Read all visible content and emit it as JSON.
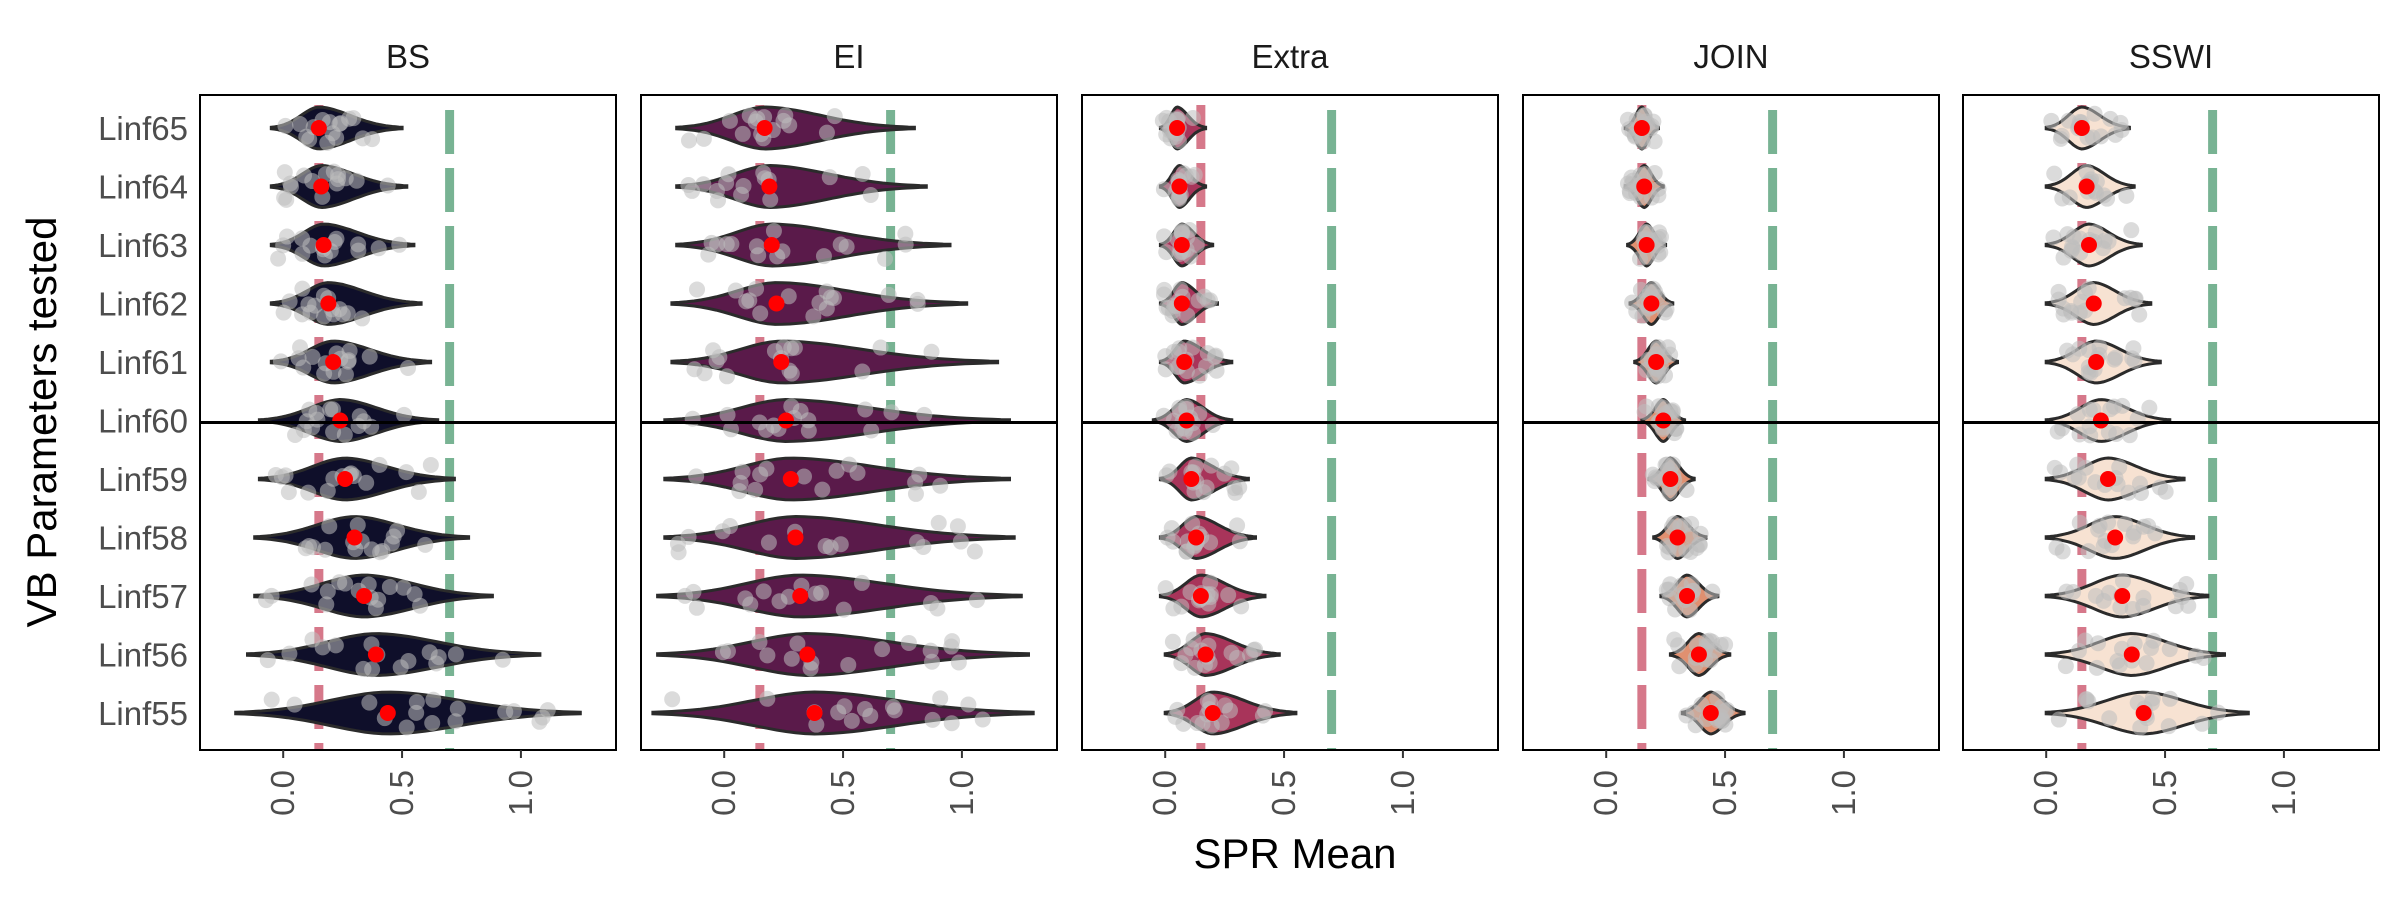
{
  "chart_data": {
    "type": "violin",
    "xlabel": "SPR Mean",
    "ylabel": "VB Parameters tested",
    "categories": [
      "Linf65",
      "Linf64",
      "Linf63",
      "Linf62",
      "Linf61",
      "Linf60",
      "Linf59",
      "Linf58",
      "Linf57",
      "Linf56",
      "Linf55"
    ],
    "separator_after": "Linf60",
    "xlim": [
      -0.35,
      1.4
    ],
    "xticks": [
      0.0,
      0.5,
      1.0
    ],
    "xtick_labels": [
      "0.0",
      "0.5",
      "1.0"
    ],
    "reference_lines": {
      "red": {
        "x": 0.15,
        "color": "#d26a7e"
      },
      "green": {
        "x": 0.7,
        "color": "#6aab88"
      }
    },
    "mean_color": "#ff0000",
    "points_color": "#bdbdbd",
    "panels": [
      {
        "name": "BS",
        "fill": "#0f0f2a",
        "means": [
          0.15,
          0.16,
          0.17,
          0.19,
          0.21,
          0.24,
          0.26,
          0.3,
          0.34,
          0.39,
          0.44
        ],
        "ranges": [
          [
            -0.05,
            0.5
          ],
          [
            -0.05,
            0.52
          ],
          [
            -0.05,
            0.55
          ],
          [
            -0.05,
            0.58
          ],
          [
            -0.05,
            0.62
          ],
          [
            -0.1,
            0.65
          ],
          [
            -0.1,
            0.72
          ],
          [
            -0.12,
            0.78
          ],
          [
            -0.12,
            0.88
          ],
          [
            -0.15,
            1.08
          ],
          [
            -0.2,
            1.25
          ]
        ]
      },
      {
        "name": "EI",
        "fill": "#5a1a4a",
        "means": [
          0.17,
          0.19,
          0.2,
          0.22,
          0.24,
          0.26,
          0.28,
          0.3,
          0.32,
          0.35,
          0.38
        ],
        "ranges": [
          [
            -0.2,
            0.8
          ],
          [
            -0.2,
            0.85
          ],
          [
            -0.2,
            0.95
          ],
          [
            -0.22,
            1.02
          ],
          [
            -0.22,
            1.15
          ],
          [
            -0.25,
            1.2
          ],
          [
            -0.25,
            1.2
          ],
          [
            -0.25,
            1.22
          ],
          [
            -0.28,
            1.25
          ],
          [
            -0.28,
            1.28
          ],
          [
            -0.3,
            1.3
          ]
        ]
      },
      {
        "name": "Extra",
        "fill": "#a8345a",
        "means": [
          0.05,
          0.06,
          0.07,
          0.07,
          0.08,
          0.09,
          0.11,
          0.13,
          0.15,
          0.17,
          0.2
        ],
        "ranges": [
          [
            -0.02,
            0.17
          ],
          [
            -0.02,
            0.17
          ],
          [
            -0.02,
            0.2
          ],
          [
            -0.02,
            0.22
          ],
          [
            -0.02,
            0.28
          ],
          [
            -0.05,
            0.28
          ],
          [
            -0.02,
            0.35
          ],
          [
            -0.02,
            0.38
          ],
          [
            -0.02,
            0.42
          ],
          [
            0.0,
            0.48
          ],
          [
            0.0,
            0.55
          ]
        ]
      },
      {
        "name": "JOIN",
        "fill": "#e09070",
        "means": [
          0.15,
          0.16,
          0.17,
          0.19,
          0.21,
          0.24,
          0.27,
          0.3,
          0.34,
          0.39,
          0.44
        ],
        "ranges": [
          [
            0.08,
            0.22
          ],
          [
            0.08,
            0.24
          ],
          [
            0.09,
            0.25
          ],
          [
            0.1,
            0.28
          ],
          [
            0.12,
            0.3
          ],
          [
            0.15,
            0.33
          ],
          [
            0.18,
            0.37
          ],
          [
            0.2,
            0.42
          ],
          [
            0.23,
            0.47
          ],
          [
            0.27,
            0.52
          ],
          [
            0.32,
            0.58
          ]
        ]
      },
      {
        "name": "SSWI",
        "fill": "#f7e2d2",
        "means": [
          0.15,
          0.17,
          0.18,
          0.2,
          0.21,
          0.23,
          0.26,
          0.29,
          0.32,
          0.36,
          0.41
        ],
        "ranges": [
          [
            0.0,
            0.35
          ],
          [
            0.0,
            0.37
          ],
          [
            0.0,
            0.4
          ],
          [
            0.0,
            0.44
          ],
          [
            0.0,
            0.48
          ],
          [
            0.0,
            0.52
          ],
          [
            0.0,
            0.58
          ],
          [
            0.0,
            0.62
          ],
          [
            0.0,
            0.68
          ],
          [
            0.0,
            0.75
          ],
          [
            0.0,
            0.85
          ]
        ]
      }
    ]
  }
}
